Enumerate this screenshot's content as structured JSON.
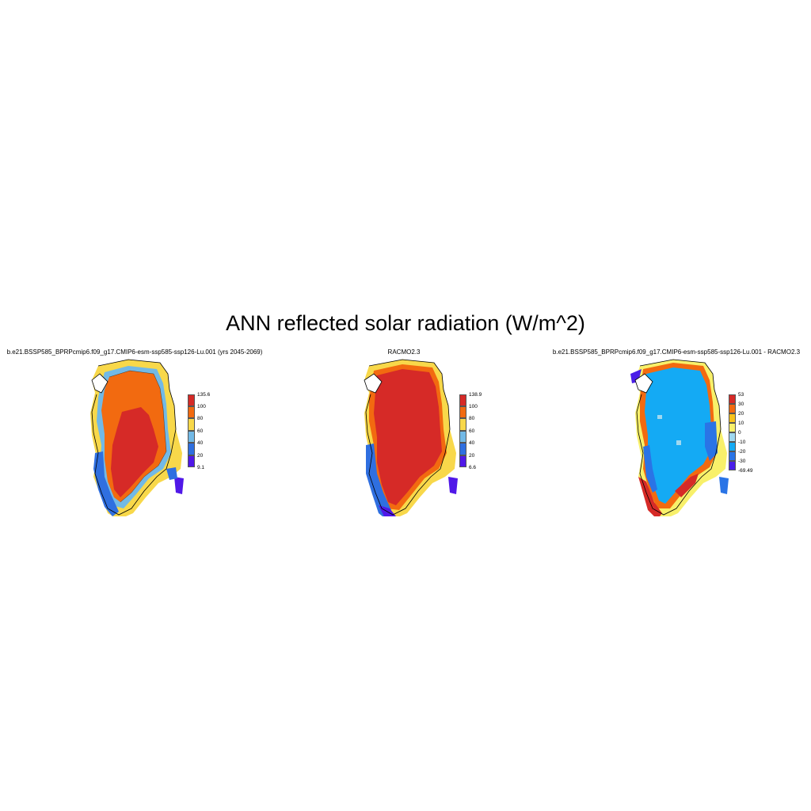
{
  "figure": {
    "title": "ANN reflected solar radiation (W/m^2)"
  },
  "panels": [
    {
      "title": "b.e21.BSSP585_BPRPcmip6.f09_g17.CMIP6-esm-ssp585-ssp126-Lu.001 (yrs 2045-2069)",
      "colorbar": {
        "colors": [
          "#d62a27",
          "#f26a10",
          "#f8d84a",
          "#72b9e6",
          "#2f6fe0",
          "#5018e8"
        ],
        "labels": [
          "135.6",
          "100",
          "80",
          "60",
          "40",
          "20",
          "9.1"
        ]
      }
    },
    {
      "title": "RACMO2.3",
      "colorbar": {
        "colors": [
          "#d62a27",
          "#f26a10",
          "#f8d84a",
          "#72b9e6",
          "#2f6fe0",
          "#5018e8"
        ],
        "labels": [
          "138.9",
          "100",
          "80",
          "60",
          "40",
          "20",
          "6.6"
        ]
      }
    },
    {
      "title": "b.e21.BSSP585_BPRPcmip6.f09_g17.CMIP6-esm-ssp585-ssp126-Lu.001 - RACMO2.3",
      "colorbar": {
        "colors": [
          "#d62a27",
          "#f26a10",
          "#f8c21a",
          "#f8f06a",
          "#9fd8f0",
          "#14aaf4",
          "#2a74e6",
          "#4a1ee8"
        ],
        "labels": [
          "53",
          "30",
          "20",
          "10",
          "0",
          "-10",
          "-20",
          "-30",
          "-69.49"
        ]
      }
    }
  ]
}
